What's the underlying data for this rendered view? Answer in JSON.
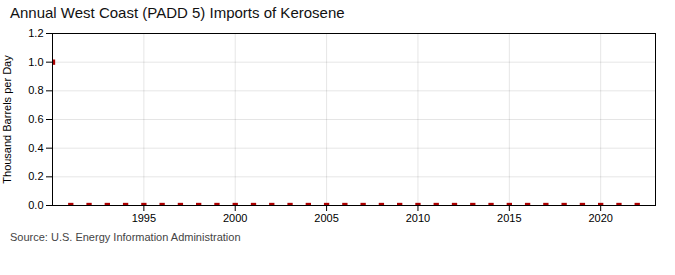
{
  "chart_data": {
    "type": "scatter",
    "title": "Annual West Coast (PADD 5) Imports of Kerosene",
    "ylabel": "Thousand Barrels per Day",
    "annotations": [
      "Source: U.S. Energy Information Administration"
    ],
    "x": [
      1990,
      1991,
      1992,
      1993,
      1994,
      1995,
      1996,
      1997,
      1998,
      1999,
      2000,
      2001,
      2002,
      2003,
      2004,
      2005,
      2006,
      2007,
      2008,
      2009,
      2010,
      2011,
      2012,
      2013,
      2014,
      2015,
      2016,
      2017,
      2018,
      2019,
      2020,
      2021,
      2022
    ],
    "values": [
      1.0,
      0.0,
      0.0,
      0.0,
      0.0,
      0.0,
      0.0,
      0.0,
      0.0,
      0.0,
      0.0,
      0.0,
      0.0,
      0.0,
      0.0,
      0.0,
      0.0,
      0.0,
      0.0,
      0.0,
      0.0,
      0.0,
      0.0,
      0.0,
      0.0,
      0.0,
      0.0,
      0.0,
      0.0,
      0.0,
      0.0,
      0.0,
      0.0
    ],
    "color": "#aa0000",
    "marker": "square",
    "xlim": [
      1990,
      2023
    ],
    "xticks": [
      1995,
      2000,
      2005,
      2010,
      2015,
      2020
    ],
    "ylim": [
      0,
      1.2
    ],
    "yticks": [
      {
        "value": 0.0,
        "label": "0.0"
      },
      0.2,
      0.4,
      0.6,
      0.8,
      {
        "value": 1.0,
        "label": "1.0"
      },
      1.2
    ],
    "grid": true
  }
}
